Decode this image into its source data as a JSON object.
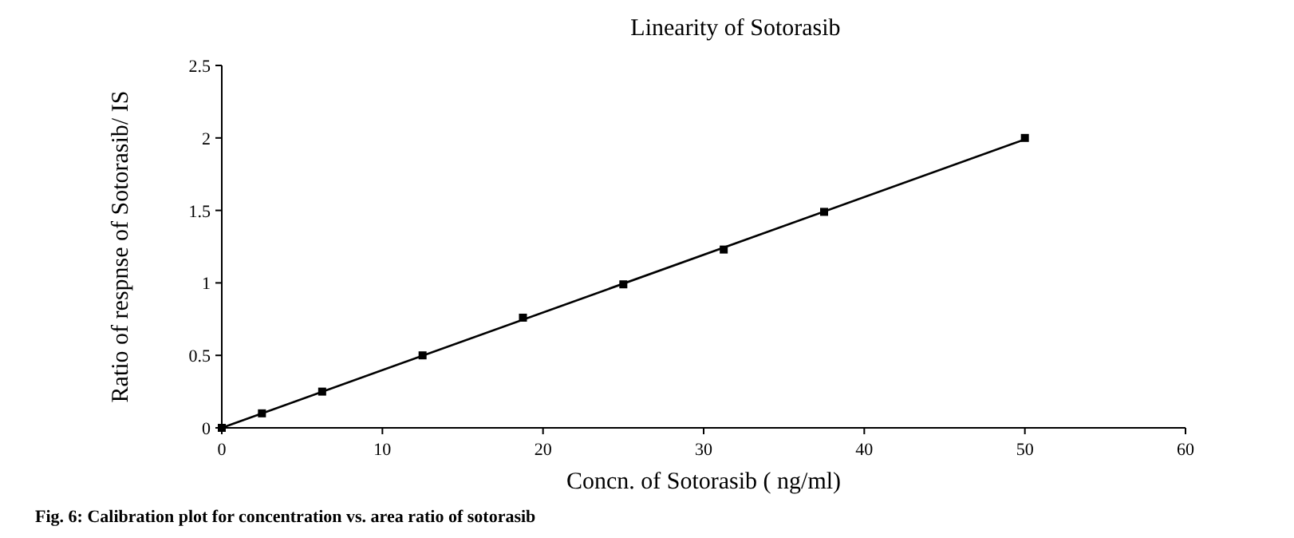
{
  "chart_data": {
    "type": "scatter",
    "title": "Linearity of Sotorasib",
    "xlabel": "Concn. of Sotorasib ( ng/ml)",
    "ylabel": "Ratio of respnse of Sotorasib/ IS",
    "x": [
      0,
      2.5,
      6.25,
      12.5,
      18.75,
      25,
      31.25,
      37.5,
      50
    ],
    "series": [
      {
        "color": "#000000",
        "values": [
          0,
          0.1,
          0.25,
          0.5,
          0.76,
          0.99,
          1.23,
          1.49,
          2.0
        ],
        "marker": "square"
      },
      {
        "type": "line",
        "color": "#000000",
        "x": [
          0,
          50
        ],
        "values": [
          0,
          1.99
        ],
        "marker": "none",
        "line_style": "solid"
      }
    ],
    "xlim": [
      0,
      60
    ],
    "xticks": [
      0,
      10,
      20,
      30,
      40,
      50,
      60
    ],
    "ylim": [
      0,
      2.5
    ],
    "yticks": [
      0,
      0.5,
      1,
      1.5,
      2,
      2.5
    ],
    "grid": false,
    "annotations": [
      "Fig. 6: Calibration plot for concentration vs. area ratio of sotorasib"
    ]
  }
}
